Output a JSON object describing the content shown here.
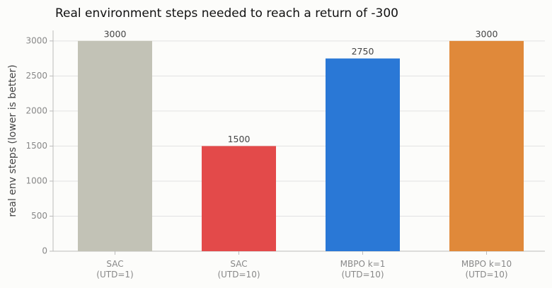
{
  "chart_data": {
    "type": "bar",
    "title": "Real environment steps needed to reach a return of -300",
    "ylabel": "real env steps (lower is better)",
    "categories": [
      "SAC\n(UTD=1)",
      "SAC\n(UTD=10)",
      "MBPO k=1\n(UTD=10)",
      "MBPO k=10\n(UTD=10)"
    ],
    "values": [
      3000,
      1500,
      2750,
      3000
    ],
    "colors": [
      "#c2c2b6",
      "#e34a4a",
      "#2a78d6",
      "#e0893a"
    ],
    "ylim": [
      0,
      3150
    ],
    "yticks": [
      0,
      500,
      1000,
      1500,
      2000,
      2500,
      3000
    ],
    "grid": true
  }
}
